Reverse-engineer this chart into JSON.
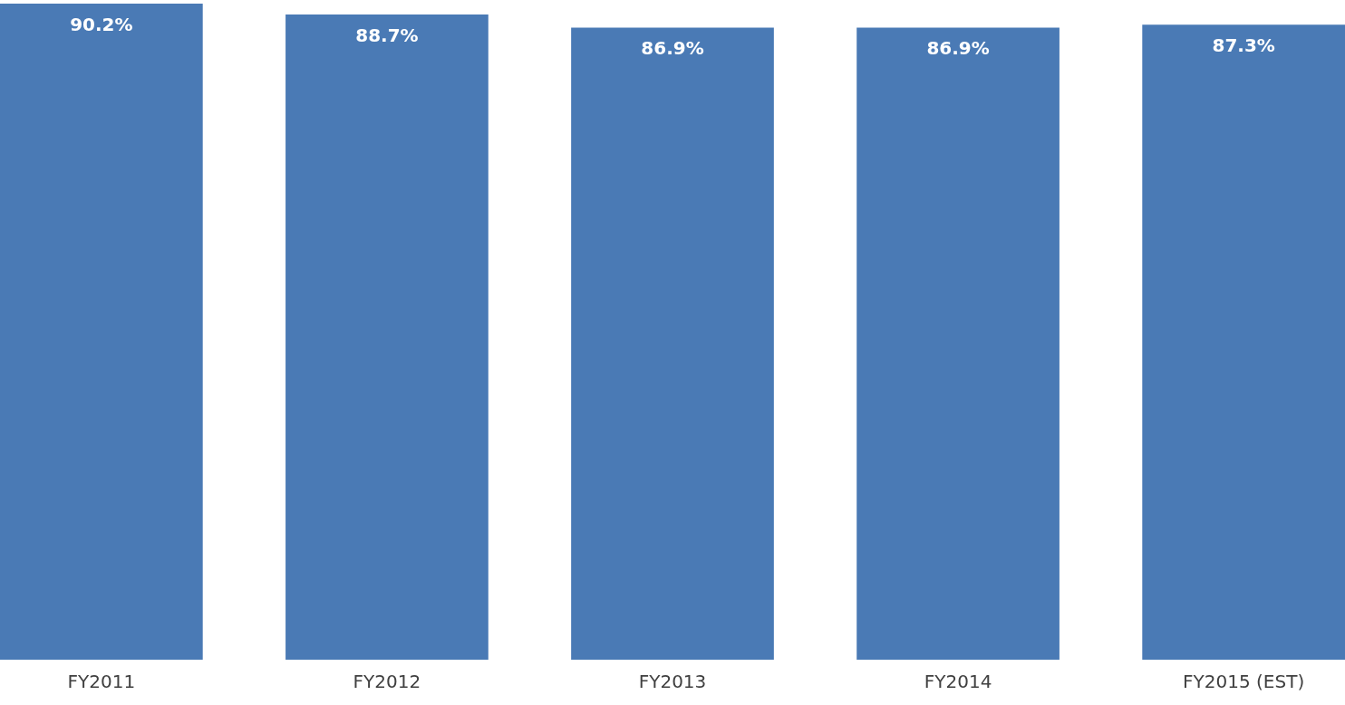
{
  "chart_data": {
    "type": "bar",
    "categories": [
      "FY2011",
      "FY2012",
      "FY2013",
      "FY2014",
      "FY2015 (EST)"
    ],
    "values": [
      90.2,
      88.7,
      86.9,
      86.9,
      87.3
    ],
    "value_labels": [
      "90.2%",
      "88.7%",
      "86.9%",
      "86.9%",
      "87.3%"
    ],
    "color": "#4a7ab5"
  }
}
